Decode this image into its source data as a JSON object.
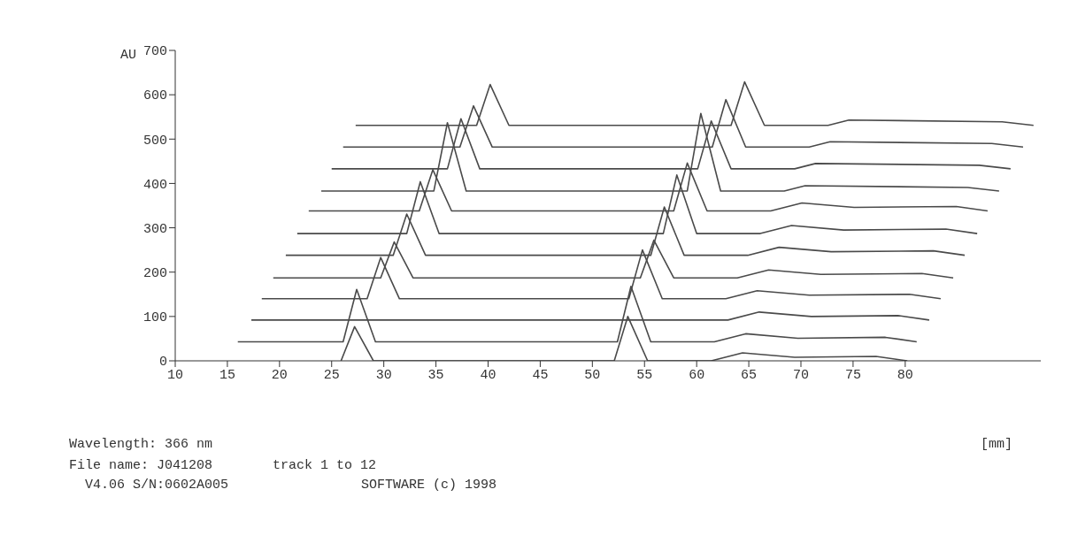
{
  "chart_data": {
    "type": "line",
    "ylabel": "AU",
    "xlabel": "[mm]",
    "xlim": [
      10,
      93
    ],
    "xticks": [
      10,
      15,
      20,
      25,
      30,
      35,
      40,
      45,
      50,
      55,
      60,
      65,
      70,
      75,
      80
    ],
    "ylim": [
      0,
      700
    ],
    "yticks": [
      0,
      100,
      200,
      300,
      400,
      500,
      600,
      700
    ],
    "marker": "none",
    "line_style": "solid",
    "annotations": [
      "Wavelength: 366 nm",
      "File name: J041208",
      "track 1 to 12",
      "V4.06 S/N:0602A005",
      "SOFTWARE (c) 1998"
    ],
    "series": [
      {
        "color": "#4a4a4a",
        "x": [
          25.9,
          27.2,
          29.0,
          52.1,
          53.4,
          55.3,
          61.4,
          64.4,
          69.4,
          77.2,
          80.2
        ],
        "values": [
          0,
          77,
          0,
          0,
          100,
          0,
          0,
          18,
          8,
          10,
          0
        ]
      },
      {
        "color": "#4a4a4a",
        "x": [
          16.0,
          26.1,
          27.4,
          29.2,
          52.4,
          53.7,
          55.6,
          61.7,
          64.7,
          69.7,
          78.1,
          81.1
        ],
        "values": [
          43,
          43,
          161,
          43,
          43,
          168,
          43,
          43,
          61,
          51,
          53,
          43
        ]
      },
      {
        "color": "#4a4a4a",
        "x": [
          17.3,
          63.0,
          66.0,
          71.0,
          79.3,
          82.3
        ],
        "values": [
          92,
          92,
          110,
          100,
          102,
          92
        ]
      },
      {
        "color": "#4a4a4a",
        "x": [
          18.3,
          28.4,
          29.7,
          31.5,
          53.5,
          54.8,
          56.7,
          62.8,
          65.8,
          70.8,
          80.4,
          83.4
        ],
        "values": [
          140,
          140,
          233,
          140,
          140,
          250,
          140,
          140,
          158,
          148,
          150,
          140
        ]
      },
      {
        "color": "#4a4a4a",
        "x": [
          19.4,
          29.7,
          31.0,
          32.8,
          54.6,
          55.9,
          57.8,
          63.9,
          66.9,
          71.9,
          81.6,
          84.6
        ],
        "values": [
          187,
          187,
          268,
          187,
          187,
          272,
          187,
          187,
          205,
          195,
          197,
          187
        ]
      },
      {
        "color": "#4a4a4a",
        "x": [
          20.6,
          30.9,
          32.2,
          34.0,
          55.6,
          56.9,
          58.8,
          64.9,
          67.9,
          72.9,
          82.7,
          85.7
        ],
        "values": [
          238,
          238,
          331,
          238,
          238,
          347,
          238,
          238,
          256,
          246,
          248,
          238
        ]
      },
      {
        "color": "#4a4a4a",
        "x": [
          21.7,
          32.2,
          33.5,
          35.3,
          56.8,
          58.1,
          60.0,
          66.1,
          69.1,
          74.1,
          83.9,
          86.9
        ],
        "values": [
          287,
          287,
          404,
          287,
          287,
          419,
          287,
          287,
          305,
          295,
          297,
          287
        ]
      },
      {
        "color": "#4a4a4a",
        "x": [
          22.8,
          33.4,
          34.7,
          36.5,
          57.8,
          59.1,
          61.0,
          67.1,
          70.1,
          75.1,
          84.9,
          87.9
        ],
        "values": [
          338,
          338,
          431,
          338,
          338,
          446,
          338,
          338,
          356,
          346,
          348,
          338
        ]
      },
      {
        "color": "#4a4a4a",
        "x": [
          24.0,
          34.8,
          36.1,
          37.9,
          59.1,
          60.4,
          62.3,
          68.4,
          70.4,
          86.0,
          89.0
        ],
        "values": [
          383,
          383,
          537,
          383,
          383,
          558,
          383,
          383,
          395,
          391,
          383
        ]
      },
      {
        "color": "#4a4a4a",
        "x": [
          25.0,
          36.1,
          37.4,
          39.2,
          60.1,
          61.4,
          63.3,
          69.4,
          71.4,
          87.1,
          90.1
        ],
        "values": [
          433,
          433,
          546,
          433,
          433,
          541,
          433,
          433,
          445,
          441,
          433
        ]
      },
      {
        "color": "#4a4a4a",
        "x": [
          26.1,
          37.3,
          38.6,
          40.4,
          61.5,
          62.8,
          64.7,
          70.8,
          72.8,
          88.3,
          91.3
        ],
        "values": [
          482,
          482,
          575,
          482,
          482,
          589,
          482,
          482,
          494,
          490,
          482
        ]
      },
      {
        "color": "#4a4a4a",
        "x": [
          27.3,
          38.9,
          40.2,
          42.0,
          63.3,
          64.6,
          66.5,
          72.6,
          74.6,
          89.3,
          92.3
        ],
        "values": [
          531,
          531,
          623,
          531,
          531,
          629,
          531,
          531,
          543,
          539,
          531
        ]
      }
    ]
  }
}
